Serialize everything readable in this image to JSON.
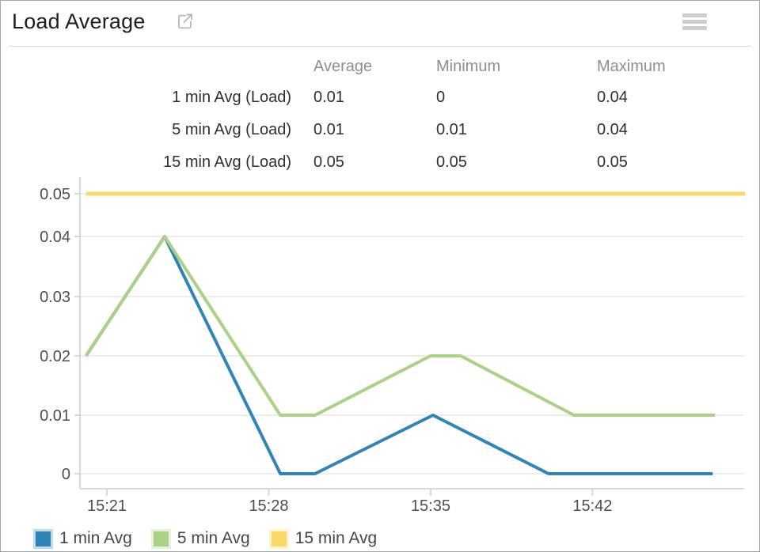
{
  "widget": {
    "title": "Load Average",
    "popout_icon": "external-link-icon",
    "menu_icon": "hamburger-menu-icon"
  },
  "stats_table": {
    "columns": [
      "Average",
      "Minimum",
      "Maximum"
    ],
    "rows": [
      {
        "label": "1 min Avg (Load)",
        "average": "0.01",
        "minimum": "0",
        "maximum": "0.04"
      },
      {
        "label": "5 min Avg (Load)",
        "average": "0.01",
        "minimum": "0.01",
        "maximum": "0.04"
      },
      {
        "label": "15 min Avg (Load)",
        "average": "0.05",
        "minimum": "0.05",
        "maximum": "0.05"
      }
    ]
  },
  "chart_data": {
    "type": "line",
    "title": "Load Average",
    "grid": true,
    "legend_position": "bottom-left",
    "x_axis": {
      "unit": "time of day, minutes after 15:00",
      "tick_labels": [
        "15:21",
        "15:28",
        "15:35",
        "15:42"
      ],
      "tick_minutes": [
        21,
        28,
        35,
        42
      ],
      "range_minutes": [
        19.8,
        48.6
      ]
    },
    "y_axis": {
      "tick_labels": [
        "0",
        "0.01",
        "0.02",
        "0.03",
        "0.04",
        "0.05"
      ],
      "tick_values": [
        0,
        0.01,
        0.02,
        0.03,
        0.04,
        0.05
      ],
      "range": [
        0,
        0.05
      ]
    },
    "series": [
      {
        "name": "1 min Avg",
        "color": "#2f84ba",
        "width": 4,
        "points": [
          [
            20.1,
            0.02
          ],
          [
            23.5,
            0.04
          ],
          [
            28.5,
            0
          ],
          [
            30.0,
            0
          ],
          [
            35.1,
            0.01
          ],
          [
            40.1,
            0
          ],
          [
            47.2,
            0
          ]
        ]
      },
      {
        "name": "5 min Avg",
        "color": "#a9d287",
        "width": 4,
        "points": [
          [
            20.1,
            0.02
          ],
          [
            23.5,
            0.04
          ],
          [
            28.5,
            0.01
          ],
          [
            30.0,
            0.01
          ],
          [
            35.0,
            0.02
          ],
          [
            36.3,
            0.02
          ],
          [
            41.2,
            0.01
          ],
          [
            47.3,
            0.01
          ]
        ]
      },
      {
        "name": "15 min Avg",
        "color": "#fbd768",
        "width": 5,
        "points": [
          [
            20.1,
            0.05
          ],
          [
            48.6,
            0.05
          ]
        ]
      }
    ],
    "legend": [
      "1 min Avg",
      "5 min Avg",
      "15 min Avg"
    ]
  },
  "colors": {
    "axis": "#d8d8d8",
    "gridline": "#ededed",
    "tick_text": "#4b4e53"
  }
}
